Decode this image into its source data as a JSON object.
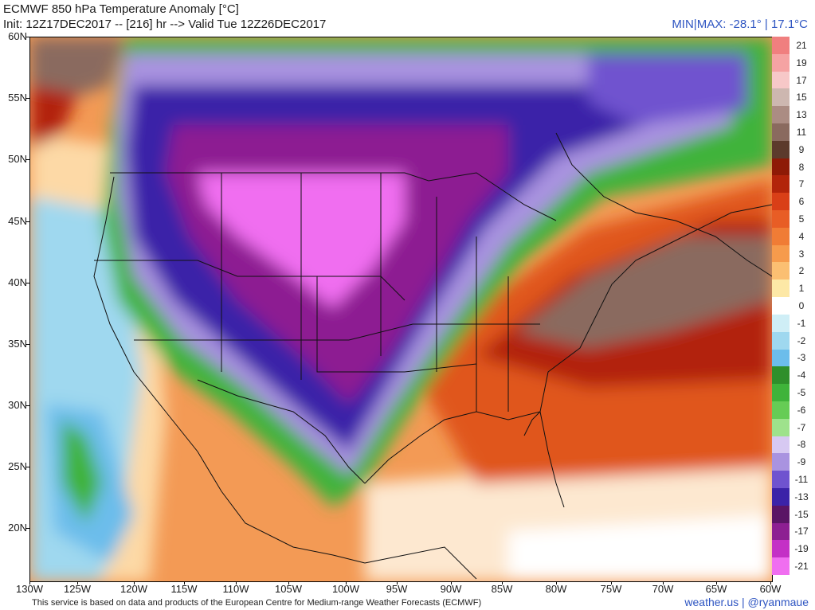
{
  "header": {
    "title": "ECMWF 850 hPa Temperature Anomaly [°C]",
    "init_line": "Init: 12Z17DEC2017 -- [216] hr --> Valid Tue 12Z26DEC2017",
    "minmax": "MIN|MAX: -28.1° | 17.1°C"
  },
  "axes": {
    "lat_labels": [
      "60N",
      "55N",
      "50N",
      "45N",
      "40N",
      "35N",
      "30N",
      "25N",
      "20N"
    ],
    "lon_labels": [
      "130W",
      "125W",
      "120W",
      "115W",
      "110W",
      "105W",
      "100W",
      "95W",
      "90W",
      "85W",
      "80W",
      "75W",
      "70W",
      "65W",
      "60W"
    ]
  },
  "colorbar": {
    "labels": [
      "21",
      "19",
      "17",
      "15",
      "13",
      "11",
      "9",
      "8",
      "7",
      "6",
      "5",
      "4",
      "3",
      "2",
      "1",
      "0",
      "-1",
      "-2",
      "-3",
      "-4",
      "-5",
      "-6",
      "-7",
      "-8",
      "-9",
      "-11",
      "-13",
      "-15",
      "-17",
      "-19",
      "-21"
    ],
    "colors": [
      "#f07f7f",
      "#f5a3a3",
      "#f7c8c8",
      "#cdb7b0",
      "#ab8c83",
      "#8a6a5f",
      "#5c3a2c",
      "#8e1a06",
      "#b2240a",
      "#d93f17",
      "#e85d25",
      "#f07c35",
      "#f69b4c",
      "#fbbf72",
      "#fde8a6",
      "#ffffff",
      "#cfeef6",
      "#9fd8ef",
      "#6cbdeb",
      "#2f8f2b",
      "#3fb33a",
      "#66cc55",
      "#9ee28c",
      "#d7c9f2",
      "#a993e0",
      "#6f53cf",
      "#3b23a8",
      "#5a1565",
      "#8d1f92",
      "#c430c6",
      "#f06ef0"
    ]
  },
  "footer": {
    "credit": "This service is based on data and products of the European Centre for Medium-range Weather Forecasts (ECMWF)",
    "brand": "weather.us | @ryanmaue"
  }
}
